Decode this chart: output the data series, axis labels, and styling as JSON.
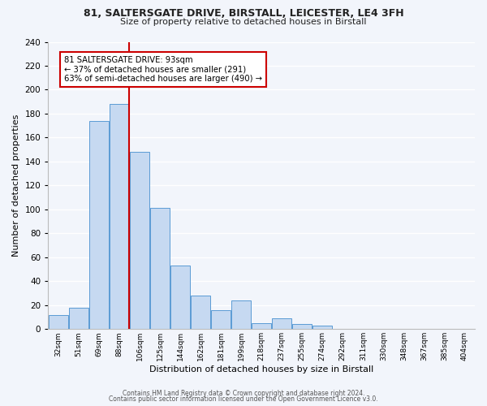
{
  "title1": "81, SALTERSGATE DRIVE, BIRSTALL, LEICESTER, LE4 3FH",
  "title2": "Size of property relative to detached houses in Birstall",
  "xlabel": "Distribution of detached houses by size in Birstall",
  "ylabel": "Number of detached properties",
  "bin_labels": [
    "32sqm",
    "51sqm",
    "69sqm",
    "88sqm",
    "106sqm",
    "125sqm",
    "144sqm",
    "162sqm",
    "181sqm",
    "199sqm",
    "218sqm",
    "237sqm",
    "255sqm",
    "274sqm",
    "292sqm",
    "311sqm",
    "330sqm",
    "348sqm",
    "367sqm",
    "385sqm",
    "404sqm"
  ],
  "bar_heights": [
    12,
    18,
    174,
    188,
    148,
    101,
    53,
    28,
    16,
    24,
    5,
    9,
    4,
    3,
    0,
    0,
    0,
    0,
    0,
    0,
    0
  ],
  "bar_color": "#c6d9f1",
  "bar_edge_color": "#5b9bd5",
  "property_line_color": "#cc0000",
  "annotation_title": "81 SALTERSGATE DRIVE: 93sqm",
  "annotation_line1": "← 37% of detached houses are smaller (291)",
  "annotation_line2": "63% of semi-detached houses are larger (490) →",
  "annotation_box_color": "#ffffff",
  "annotation_box_edge": "#cc0000",
  "ylim": [
    0,
    240
  ],
  "yticks": [
    0,
    20,
    40,
    60,
    80,
    100,
    120,
    140,
    160,
    180,
    200,
    220,
    240
  ],
  "footer1": "Contains HM Land Registry data © Crown copyright and database right 2024.",
  "footer2": "Contains public sector information licensed under the Open Government Licence v3.0.",
  "bg_color": "#f2f5fb",
  "plot_bg_color": "#f2f5fb",
  "grid_color": "#ffffff"
}
